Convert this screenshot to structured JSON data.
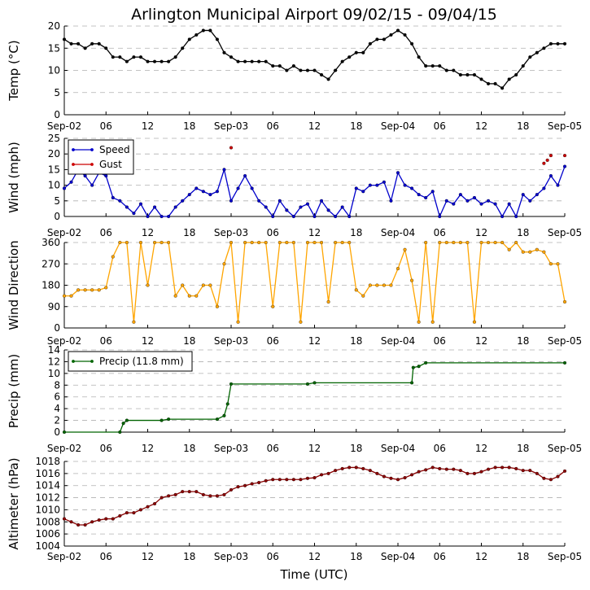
{
  "chart_data": {
    "type": "line",
    "title": "Arlington Municipal Airport 09/02/15 - 09/04/15",
    "xlabel": "Time (UTC)",
    "x_range_hours": [
      0,
      72
    ],
    "x_ticks": [
      {
        "hour": 0,
        "label": "Sep-02"
      },
      {
        "hour": 6,
        "label": "06"
      },
      {
        "hour": 12,
        "label": "12"
      },
      {
        "hour": 18,
        "label": "18"
      },
      {
        "hour": 24,
        "label": "Sep-03"
      },
      {
        "hour": 30,
        "label": "06"
      },
      {
        "hour": 36,
        "label": "12"
      },
      {
        "hour": 42,
        "label": "18"
      },
      {
        "hour": 48,
        "label": "Sep-04"
      },
      {
        "hour": 54,
        "label": "06"
      },
      {
        "hour": 60,
        "label": "12"
      },
      {
        "hour": 66,
        "label": "18"
      },
      {
        "hour": 72,
        "label": "Sep-05"
      }
    ],
    "panels": [
      {
        "id": "temp",
        "ylabel": "Temp ($^\\circ$C)",
        "ylabel_display": "Temp (°C)",
        "ylim": [
          0,
          20
        ],
        "yticks": [
          0,
          5,
          10,
          15,
          20
        ],
        "grid": true,
        "series": [
          {
            "name": "Temperature",
            "color": "#000000",
            "marker": "#000000",
            "x": [
              0,
              1,
              2,
              3,
              4,
              5,
              6,
              7,
              8,
              9,
              10,
              11,
              12,
              13,
              14,
              15,
              16,
              17,
              18,
              19,
              20,
              21,
              22,
              23,
              24,
              25,
              26,
              27,
              28,
              29,
              30,
              31,
              32,
              33,
              34,
              35,
              36,
              37,
              38,
              39,
              40,
              41,
              42,
              43,
              44,
              45,
              46,
              47,
              48,
              49,
              50,
              51,
              52,
              53,
              54,
              55,
              56,
              57,
              58,
              59,
              60,
              61,
              62,
              63,
              64,
              65,
              66,
              67,
              68,
              69,
              70,
              71,
              72
            ],
            "y": [
              17,
              16,
              16,
              15,
              16,
              16,
              15,
              13,
              13,
              12,
              13,
              13,
              12,
              12,
              12,
              12,
              13,
              15,
              17,
              18,
              19,
              19,
              17,
              14,
              13,
              12,
              12,
              12,
              12,
              12,
              11,
              11,
              10,
              11,
              10,
              10,
              10,
              9,
              8,
              10,
              12,
              13,
              14,
              14,
              16,
              17,
              17,
              18,
              19,
              18,
              16,
              13,
              11,
              11,
              11,
              10,
              10,
              9,
              9,
              9,
              8,
              7,
              7,
              6,
              8,
              9,
              11,
              13,
              14,
              15,
              16,
              16,
              16
            ]
          }
        ]
      },
      {
        "id": "wind",
        "ylabel": "Wind (mph)",
        "ylim": [
          0,
          25
        ],
        "yticks": [
          0,
          5,
          10,
          15,
          20,
          25
        ],
        "grid": true,
        "legend": {
          "position": "upper-left",
          "entries": [
            "Speed",
            "Gust"
          ]
        },
        "series": [
          {
            "name": "Speed",
            "color": "#0000cc",
            "marker": "#0000cc",
            "x": [
              0,
              1,
              2,
              3,
              4,
              5,
              6,
              7,
              8,
              9,
              10,
              11,
              12,
              13,
              14,
              15,
              16,
              17,
              18,
              19,
              20,
              21,
              22,
              23,
              24,
              25,
              26,
              27,
              28,
              29,
              30,
              31,
              32,
              33,
              34,
              35,
              36,
              37,
              38,
              39,
              40,
              41,
              42,
              43,
              44,
              45,
              46,
              47,
              48,
              49,
              50,
              51,
              52,
              53,
              54,
              55,
              56,
              57,
              58,
              59,
              60,
              61,
              62,
              63,
              64,
              65,
              66,
              67,
              68,
              69,
              70,
              71,
              72
            ],
            "y": [
              9,
              11,
              15,
              13,
              10,
              14,
              13,
              6,
              5,
              3,
              1,
              4,
              0,
              3,
              0,
              0,
              3,
              5,
              7,
              9,
              8,
              7,
              8,
              15,
              5,
              9,
              13,
              9,
              5,
              3,
              0,
              5,
              2,
              0,
              3,
              4,
              0,
              5,
              2,
              0,
              3,
              0,
              9,
              8,
              10,
              10,
              11,
              5,
              14,
              10,
              9,
              7,
              6,
              8,
              0,
              5,
              4,
              7,
              5,
              6,
              4,
              5,
              4,
              0,
              4,
              0,
              7,
              5,
              7,
              9,
              13,
              10,
              16
            ]
          },
          {
            "name": "Gust",
            "color": "#cc0000",
            "marker": "#cc0000",
            "x": [
              24,
              69,
              69.5,
              70,
              72
            ],
            "y": [
              22,
              17,
              18,
              19.5,
              19.5
            ]
          }
        ]
      },
      {
        "id": "dir",
        "ylabel": "Wind Direction",
        "ylim": [
          0,
          360
        ],
        "yticks": [
          0,
          90,
          180,
          270,
          360
        ],
        "grid": true,
        "series": [
          {
            "name": "Direction",
            "color": "#ffa500",
            "marker": "#ffa500",
            "x": [
              0,
              1,
              2,
              3,
              4,
              5,
              6,
              7,
              8,
              9,
              10,
              11,
              12,
              13,
              14,
              15,
              16,
              17,
              18,
              19,
              20,
              21,
              22,
              23,
              24,
              25,
              26,
              27,
              28,
              29,
              30,
              31,
              32,
              33,
              34,
              35,
              36,
              37,
              38,
              39,
              40,
              41,
              42,
              43,
              44,
              45,
              46,
              47,
              48,
              49,
              50,
              51,
              52,
              53,
              54,
              55,
              56,
              57,
              58,
              59,
              60,
              61,
              62,
              63,
              64,
              65,
              66,
              67,
              68,
              69,
              70,
              71,
              72
            ],
            "y": [
              135,
              135,
              160,
              160,
              160,
              160,
              170,
              300,
              360,
              360,
              25,
              360,
              180,
              360,
              360,
              360,
              135,
              180,
              135,
              135,
              180,
              180,
              90,
              270,
              360,
              25,
              360,
              360,
              360,
              360,
              90,
              360,
              360,
              360,
              25,
              360,
              360,
              360,
              110,
              360,
              360,
              360,
              160,
              135,
              180,
              180,
              180,
              180,
              250,
              330,
              200,
              25,
              360,
              25,
              360,
              360,
              360,
              360,
              360,
              25,
              360,
              360,
              360,
              360,
              330,
              360,
              320,
              320,
              330,
              320,
              270,
              270,
              110
            ]
          }
        ]
      },
      {
        "id": "precip",
        "ylabel": "Precip (mm)",
        "ylim": [
          0,
          14
        ],
        "yticks": [
          0,
          2,
          4,
          6,
          8,
          10,
          12,
          14
        ],
        "grid": true,
        "legend": {
          "position": "upper-left",
          "entries": [
            "Precip (11.8 mm)"
          ]
        },
        "series": [
          {
            "name": "Precip (11.8 mm)",
            "color": "#006400",
            "marker": "#006400",
            "x": [
              0,
              8,
              8.5,
              9,
              14,
              15,
              22,
              23,
              23.5,
              24,
              35,
              36,
              50,
              50.2,
              51,
              52,
              72
            ],
            "y": [
              0,
              0,
              1.5,
              2,
              2,
              2.2,
              2.2,
              2.8,
              4.8,
              8.2,
              8.2,
              8.4,
              8.4,
              11,
              11.2,
              11.8,
              11.8
            ]
          }
        ]
      },
      {
        "id": "alt",
        "ylabel": "Altimeter (hPa)",
        "ylim": [
          1004,
          1018
        ],
        "yticks": [
          1004,
          1006,
          1008,
          1010,
          1012,
          1014,
          1016,
          1018
        ],
        "grid": true,
        "series": [
          {
            "name": "Altimeter",
            "color": "#8b0000",
            "marker": "#8b0000",
            "x": [
              0,
              1,
              2,
              3,
              4,
              5,
              6,
              7,
              8,
              9,
              10,
              11,
              12,
              13,
              14,
              15,
              16,
              17,
              18,
              19,
              20,
              21,
              22,
              23,
              24,
              25,
              26,
              27,
              28,
              29,
              30,
              31,
              32,
              33,
              34,
              35,
              36,
              37,
              38,
              39,
              40,
              41,
              42,
              43,
              44,
              45,
              46,
              47,
              48,
              49,
              50,
              51,
              52,
              53,
              54,
              55,
              56,
              57,
              58,
              59,
              60,
              61,
              62,
              63,
              64,
              65,
              66,
              67,
              68,
              69,
              70,
              71,
              72
            ],
            "y": [
              1008.5,
              1008,
              1007.5,
              1007.5,
              1008,
              1008.3,
              1008.5,
              1008.5,
              1009,
              1009.5,
              1009.5,
              1010,
              1010.5,
              1011,
              1012,
              1012.3,
              1012.5,
              1013,
              1013,
              1013,
              1012.5,
              1012.3,
              1012.3,
              1012.5,
              1013.3,
              1013.8,
              1014,
              1014.3,
              1014.5,
              1014.8,
              1015,
              1015,
              1015,
              1015,
              1015,
              1015.2,
              1015.3,
              1015.8,
              1016,
              1016.5,
              1016.8,
              1017,
              1017,
              1016.8,
              1016.5,
              1016,
              1015.5,
              1015.2,
              1015,
              1015.3,
              1015.8,
              1016.3,
              1016.6,
              1017,
              1016.8,
              1016.7,
              1016.7,
              1016.5,
              1016,
              1016,
              1016.3,
              1016.7,
              1017,
              1017,
              1017,
              1016.8,
              1016.5,
              1016.5,
              1016,
              1015.2,
              1015,
              1015.5,
              1016.4
            ]
          }
        ]
      }
    ]
  }
}
